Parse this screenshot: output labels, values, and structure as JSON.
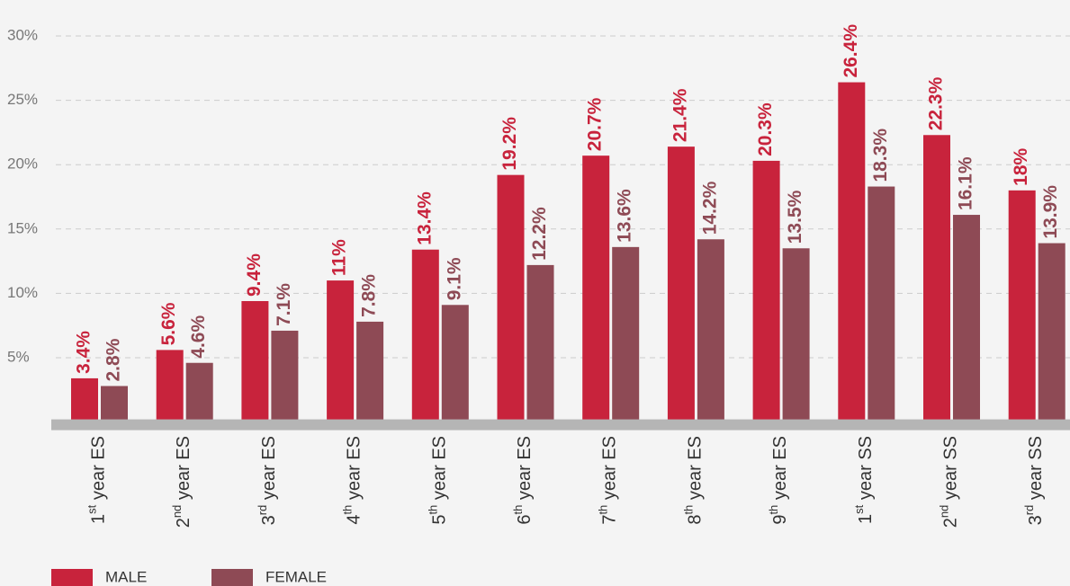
{
  "chart_data": {
    "type": "bar",
    "categories": [
      "1st year ES",
      "2nd year ES",
      "3rd year ES",
      "4th year ES",
      "5th year ES",
      "6th year ES",
      "7th year ES",
      "8th year ES",
      "9th year ES",
      "1st year SS",
      "2nd year SS",
      "3rd year SS"
    ],
    "series": [
      {
        "name": "MALE",
        "color": "#c8233c",
        "values": [
          3.4,
          5.6,
          9.4,
          11,
          13.4,
          19.2,
          20.7,
          21.4,
          20.3,
          26.4,
          22.3,
          18
        ],
        "value_labels": [
          "3.4%",
          "5.6%",
          "9.4%",
          "11%",
          "13.4%",
          "19.2%",
          "20.7%",
          "21.4%",
          "20.3%",
          "26.4%",
          "22.3%",
          "18%"
        ]
      },
      {
        "name": "FEMALE",
        "color": "#8e4a55",
        "values": [
          2.8,
          4.6,
          7.1,
          7.8,
          9.1,
          12.2,
          13.6,
          14.2,
          13.5,
          18.3,
          16.1,
          13.9
        ],
        "value_labels": [
          "2.8%",
          "4.6%",
          "7.1%",
          "7.8%",
          "9.1%",
          "12.2%",
          "13.6%",
          "14.2%",
          "13.5%",
          "18.3%",
          "16.1%",
          "13.9%"
        ]
      }
    ],
    "ylim": [
      0,
      30
    ],
    "yticks": [
      {
        "value": 5,
        "label": "5%"
      },
      {
        "value": 10,
        "label": "10%"
      },
      {
        "value": 15,
        "label": "15%"
      },
      {
        "value": 20,
        "label": "20%"
      },
      {
        "value": 25,
        "label": "25%"
      },
      {
        "value": 30,
        "label": "30%"
      }
    ],
    "grid": true,
    "legend": "bottom-left"
  }
}
